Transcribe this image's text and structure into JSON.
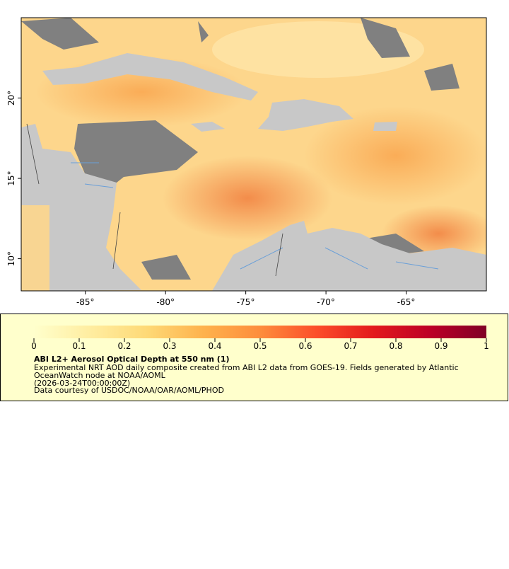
{
  "map": {
    "xlim": [
      -89,
      -60
    ],
    "ylim": [
      8,
      25
    ],
    "xticks": [
      {
        "value": -85,
        "label": "-85°"
      },
      {
        "value": -80,
        "label": "-80°"
      },
      {
        "value": -75,
        "label": "-75°"
      },
      {
        "value": -70,
        "label": "-70°"
      },
      {
        "value": -65,
        "label": "-65°"
      }
    ],
    "yticks": [
      {
        "value": 10,
        "label": "10°"
      },
      {
        "value": 15,
        "label": "15°"
      },
      {
        "value": 20,
        "label": "20°"
      }
    ]
  },
  "colorbar": {
    "range": [
      0,
      1
    ],
    "ticks": [
      0,
      0.1,
      0.2,
      0.3,
      0.4,
      0.5,
      0.6,
      0.7,
      0.8,
      0.9,
      1
    ],
    "colors": [
      "#ffffcc",
      "#ffeda0",
      "#fed976",
      "#feb24c",
      "#fd8d3c",
      "#fc4e2a",
      "#e31a1c",
      "#bd0026",
      "#800026"
    ]
  },
  "legend": {
    "title": "ABI L2+ Aerosol Optical Depth at 550 nm (1)",
    "lines": [
      "Experimental NRT AOD daily composite created from ABI L2 data from GOES-19. Fields generated by Atlantic",
      "OceanWatch node at NOAA/AOML",
      "(2026-03-24T00:00:00Z)",
      "Data courtesy of USDOC/NOAA/OAR/AOML/PHOD"
    ]
  }
}
